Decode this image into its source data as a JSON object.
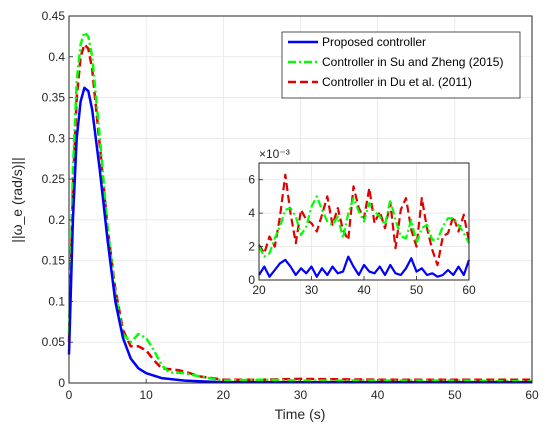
{
  "chart_data": [
    {
      "type": "line",
      "title": "",
      "xlabel": "Time (s)",
      "ylabel": "||ω_e (rad/s)||",
      "xlim": [
        0,
        60
      ],
      "ylim": [
        0,
        0.45
      ],
      "xticks": [
        "0",
        "10",
        "20",
        "30",
        "40",
        "50",
        "60"
      ],
      "yticks": [
        "0",
        "0.05",
        "0.1",
        "0.15",
        "0.2",
        "0.25",
        "0.3",
        "0.35",
        "0.4",
        "0.45"
      ],
      "grid": true,
      "legend_position": "top-right",
      "series": [
        {
          "name": "Proposed controller",
          "color": "#0000ff",
          "style": "solid",
          "x": [
            0,
            0.5,
            1,
            1.5,
            2,
            2.5,
            3,
            4,
            5,
            6,
            7,
            8,
            9,
            10,
            12,
            15,
            20,
            25,
            30,
            40,
            50,
            60
          ],
          "y": [
            0.035,
            0.2,
            0.3,
            0.345,
            0.362,
            0.358,
            0.335,
            0.26,
            0.175,
            0.1,
            0.055,
            0.03,
            0.018,
            0.012,
            0.006,
            0.003,
            0.001,
            0.001,
            0.001,
            0.001,
            0.001,
            0.001
          ]
        },
        {
          "name": "Controller in Su and Zheng (2015)",
          "color": "#00ff00",
          "style": "dashdot",
          "x": [
            0,
            0.5,
            1,
            1.5,
            2,
            2.5,
            3,
            4,
            5,
            6,
            7,
            8,
            9,
            10,
            11,
            12,
            13,
            15,
            17,
            20,
            25,
            30,
            40,
            50,
            60
          ],
          "y": [
            0.06,
            0.26,
            0.37,
            0.415,
            0.43,
            0.425,
            0.4,
            0.3,
            0.19,
            0.11,
            0.06,
            0.05,
            0.06,
            0.055,
            0.04,
            0.022,
            0.013,
            0.012,
            0.008,
            0.003,
            0.004,
            0.003,
            0.003,
            0.003,
            0.002
          ]
        },
        {
          "name": "Controller in Du et al. (2011)",
          "color": "#e00000",
          "style": "dashed",
          "x": [
            0,
            0.5,
            1,
            1.5,
            2,
            2.5,
            3,
            4,
            5,
            6,
            7,
            8,
            9,
            10,
            11,
            12,
            13,
            14,
            15,
            17,
            20,
            25,
            30,
            40,
            50,
            60
          ],
          "y": [
            0.05,
            0.24,
            0.35,
            0.4,
            0.415,
            0.41,
            0.385,
            0.29,
            0.19,
            0.115,
            0.065,
            0.045,
            0.045,
            0.04,
            0.028,
            0.018,
            0.017,
            0.016,
            0.014,
            0.008,
            0.004,
            0.004,
            0.005,
            0.004,
            0.004,
            0.004
          ]
        }
      ]
    },
    {
      "type": "line",
      "title": "",
      "xlim": [
        20,
        60
      ],
      "ylim": [
        0,
        7
      ],
      "y_multiplier": "×10⁻³",
      "xticks": [
        "20",
        "30",
        "40",
        "50",
        "60"
      ],
      "yticks": [
        "0",
        "2",
        "4",
        "6"
      ],
      "grid": true,
      "series": [
        {
          "name": "Proposed controller",
          "color": "#0000ff",
          "style": "solid",
          "x": [
            20,
            21,
            22,
            23,
            24,
            25,
            26,
            27,
            28,
            29,
            30,
            31,
            32,
            33,
            34,
            35,
            36,
            37,
            38,
            39,
            40,
            41,
            42,
            43,
            44,
            45,
            46,
            47,
            48,
            49,
            50,
            51,
            52,
            53,
            54,
            55,
            56,
            57,
            58,
            59,
            60
          ],
          "y": [
            0.3,
            0.8,
            0.2,
            0.6,
            1.0,
            1.2,
            0.8,
            0.3,
            0.7,
            0.4,
            0.8,
            0.2,
            0.7,
            0.3,
            0.8,
            0.4,
            0.5,
            1.4,
            0.8,
            0.3,
            0.9,
            0.5,
            0.4,
            0.8,
            0.3,
            0.9,
            0.4,
            0.3,
            0.7,
            1.3,
            0.5,
            0.7,
            0.3,
            0.4,
            0.2,
            0.3,
            0.6,
            0.3,
            0.8,
            0.3,
            1.2
          ]
        },
        {
          "name": "Controller in Su and Zheng (2015)",
          "color": "#00ff00",
          "style": "dashdot",
          "x": [
            20,
            21,
            22,
            23,
            24,
            25,
            26,
            27,
            28,
            29,
            30,
            31,
            32,
            33,
            34,
            35,
            36,
            37,
            38,
            39,
            40,
            41,
            42,
            43,
            44,
            45,
            46,
            47,
            48,
            49,
            50,
            51,
            52,
            53,
            54,
            55,
            56,
            57,
            58,
            59,
            60
          ],
          "y": [
            2.0,
            1.4,
            1.6,
            2.5,
            3.2,
            4.2,
            4.3,
            3.8,
            2.7,
            3.2,
            4.4,
            5.0,
            4.2,
            3.5,
            3.3,
            3.8,
            2.5,
            4.0,
            4.9,
            4.1,
            3.5,
            4.6,
            4.1,
            3.8,
            3.3,
            4.8,
            3.6,
            2.6,
            2.5,
            3.6,
            2.2,
            3.1,
            3.3,
            2.4,
            2.4,
            3.2,
            3.7,
            3.7,
            3.3,
            2.8,
            2.2
          ]
        },
        {
          "name": "Controller in Du et al. (2011)",
          "color": "#e00000",
          "style": "dashed",
          "x": [
            20,
            21,
            22,
            23,
            24,
            25,
            26,
            27,
            28,
            29,
            30,
            31,
            32,
            33,
            34,
            35,
            36,
            37,
            38,
            39,
            40,
            41,
            42,
            43,
            44,
            45,
            46,
            47,
            48,
            49,
            50,
            51,
            52,
            53,
            54,
            55,
            56,
            57,
            58,
            59,
            60
          ],
          "y": [
            2.1,
            1.6,
            2.6,
            2.0,
            3.8,
            6.3,
            4.0,
            2.2,
            4.2,
            3.6,
            3.4,
            2.9,
            3.9,
            5.0,
            3.3,
            4.3,
            3.0,
            2.4,
            5.6,
            4.3,
            3.7,
            5.5,
            3.4,
            4.1,
            3.1,
            4.6,
            1.9,
            4.2,
            4.9,
            3.0,
            2.0,
            4.9,
            3.1,
            1.8,
            0.9,
            2.6,
            2.8,
            3.8,
            2.9,
            3.9,
            2.3
          ]
        }
      ]
    }
  ]
}
